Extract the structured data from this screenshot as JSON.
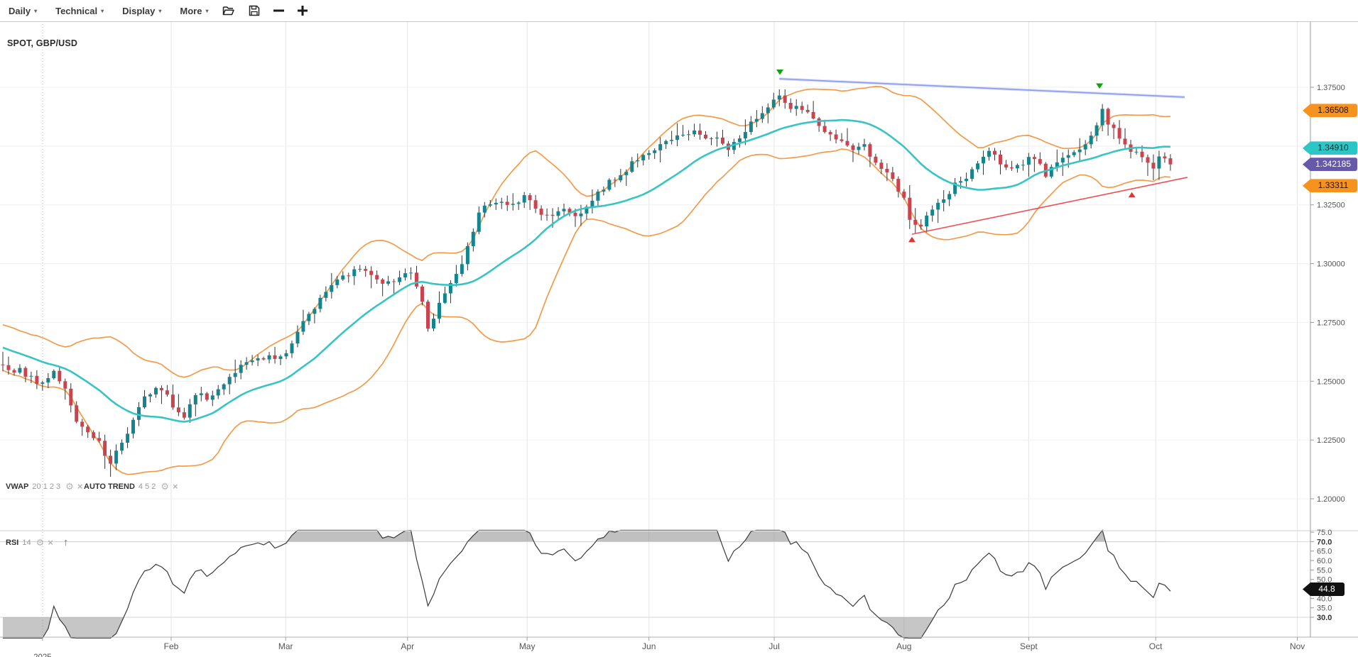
{
  "toolbar": {
    "menus": [
      {
        "name": "timeframe",
        "label": "Daily"
      },
      {
        "name": "technical",
        "label": "Technical"
      },
      {
        "name": "display",
        "label": "Display"
      },
      {
        "name": "more",
        "label": "More"
      }
    ],
    "buttons": [
      "open-layout",
      "save-layout",
      "zoom-out",
      "zoom-in"
    ]
  },
  "symbol": "SPOT, GBP/USD",
  "indicator_rows": {
    "vwap": {
      "name": "VWAP",
      "params": "20 1 2 3"
    },
    "autotrend": {
      "name": "AUTO TREND",
      "params": "4 5 2"
    },
    "rsi": {
      "name": "RSI",
      "params": "14"
    }
  },
  "colors": {
    "up": "#15858d",
    "down": "#c9444e",
    "wick": "#333333",
    "band": "#f29b49",
    "vwap": "#38c4c4",
    "trend_blue": "#7f93ee",
    "trend_blue_halo": "#b9c4f5",
    "trend_red": "#ee3b43",
    "rsi_line": "#3a3a3a",
    "grid": "#e4e4e4",
    "marker_green": "#0da30d",
    "marker_red": "#e23232"
  },
  "price_badges": [
    {
      "name": "badge-upper-band",
      "text": "1.36508",
      "bg": "#f6921e",
      "fg": "#1f1200",
      "price": 1.36508
    },
    {
      "name": "badge-vwap-mid",
      "text": "1.34910",
      "bg": "#2cc6c6",
      "fg": "#06302f",
      "price": 1.3491
    },
    {
      "name": "badge-last-price",
      "text": "1.342185",
      "bg": "#6659a9",
      "fg": "#ffffff",
      "price": 1.342185
    },
    {
      "name": "badge-lower-band",
      "text": "1.33311",
      "bg": "#f6921e",
      "fg": "#1f1200",
      "price": 1.33311
    }
  ],
  "rsi_badge": {
    "name": "badge-rsi-value",
    "text": "44.8",
    "bg": "#111111",
    "fg": "#ffffff",
    "value": 44.8
  },
  "chart_data": {
    "type": "candlestick",
    "symbol": "SPOT, GBP/USD",
    "timeframe": "Daily",
    "last_price": 1.342185,
    "n_candles": 207,
    "price_axis": {
      "ticks": [
        {
          "label": "1.37500",
          "value": 1.375
        },
        {
          "label": "1.35000",
          "value": 1.35
        },
        {
          "label": "1.32500",
          "value": 1.325
        },
        {
          "label": "1.30000",
          "value": 1.3
        },
        {
          "label": "1.27500",
          "value": 1.275
        },
        {
          "label": "1.25000",
          "value": 1.25
        },
        {
          "label": "1.22500",
          "value": 1.225
        },
        {
          "label": "1.20000",
          "value": 1.2
        }
      ]
    },
    "x_axis": {
      "year_tick": {
        "label": "2025",
        "day": 7
      },
      "months": [
        {
          "label": "Feb",
          "day": 29.7
        },
        {
          "label": "Mar",
          "day": 49.9
        },
        {
          "label": "Apr",
          "day": 71.4
        },
        {
          "label": "May",
          "day": 92.5
        },
        {
          "label": "Jun",
          "day": 114.0
        },
        {
          "label": "Jul",
          "day": 136.1
        },
        {
          "label": "Aug",
          "day": 159.0
        },
        {
          "label": "Sept",
          "day": 181.0
        },
        {
          "label": "Oct",
          "day": 203.4
        },
        {
          "label": "Nov",
          "day": 228.4
        }
      ]
    },
    "close_anchors": [
      [
        0,
        1.256
      ],
      [
        3,
        1.2545
      ],
      [
        6,
        1.25
      ],
      [
        9,
        1.253
      ],
      [
        11,
        1.2455
      ],
      [
        13,
        1.2335
      ],
      [
        15,
        1.2285
      ],
      [
        17,
        1.2245
      ],
      [
        19,
        1.215
      ],
      [
        21,
        1.2245
      ],
      [
        23,
        1.233
      ],
      [
        25,
        1.245
      ],
      [
        28,
        1.2465
      ],
      [
        30,
        1.239
      ],
      [
        32,
        1.2345
      ],
      [
        34,
        1.244
      ],
      [
        36,
        1.243
      ],
      [
        38,
        1.2465
      ],
      [
        41,
        1.254
      ],
      [
        43,
        1.258
      ],
      [
        46,
        1.2595
      ],
      [
        48,
        1.261
      ],
      [
        50,
        1.263
      ],
      [
        53,
        1.274
      ],
      [
        56,
        1.285
      ],
      [
        59,
        1.293
      ],
      [
        62,
        1.297
      ],
      [
        64,
        1.2985
      ],
      [
        66,
        1.292
      ],
      [
        68,
        1.2915
      ],
      [
        70,
        1.2945
      ],
      [
        72,
        1.295
      ],
      [
        73,
        1.291
      ],
      [
        74,
        1.283
      ],
      [
        75,
        1.272
      ],
      [
        77,
        1.283
      ],
      [
        80,
        1.295
      ],
      [
        82,
        1.306
      ],
      [
        84,
        1.322
      ],
      [
        86,
        1.326
      ],
      [
        88,
        1.327
      ],
      [
        90,
        1.324
      ],
      [
        92,
        1.329
      ],
      [
        95,
        1.322
      ],
      [
        97,
        1.321
      ],
      [
        99,
        1.3245
      ],
      [
        101,
        1.3205
      ],
      [
        104,
        1.327
      ],
      [
        107,
        1.335
      ],
      [
        110,
        1.34
      ],
      [
        113,
        1.346
      ],
      [
        116,
        1.3495
      ],
      [
        119,
        1.353
      ],
      [
        122,
        1.357
      ],
      [
        124,
        1.3535
      ],
      [
        126,
        1.355
      ],
      [
        128,
        1.348
      ],
      [
        131,
        1.357
      ],
      [
        134,
        1.364
      ],
      [
        137,
        1.371
      ],
      [
        139,
        1.365
      ],
      [
        141,
        1.366
      ],
      [
        143,
        1.362
      ],
      [
        145,
        1.357
      ],
      [
        148,
        1.351
      ],
      [
        150,
        1.348
      ],
      [
        152,
        1.3495
      ],
      [
        154,
        1.342
      ],
      [
        157,
        1.335
      ],
      [
        159,
        1.329
      ],
      [
        160,
        1.32
      ],
      [
        162,
        1.316
      ],
      [
        165,
        1.326
      ],
      [
        168,
        1.333
      ],
      [
        171,
        1.34
      ],
      [
        174,
        1.348
      ],
      [
        177,
        1.34
      ],
      [
        179,
        1.342
      ],
      [
        182,
        1.346
      ],
      [
        184,
        1.3385
      ],
      [
        186,
        1.342
      ],
      [
        188,
        1.346
      ],
      [
        191,
        1.35
      ],
      [
        193,
        1.358
      ],
      [
        194,
        1.3655
      ],
      [
        195,
        1.36
      ],
      [
        197,
        1.353
      ],
      [
        199,
        1.348
      ],
      [
        201,
        1.3465
      ],
      [
        203,
        1.341
      ],
      [
        204,
        1.3448
      ],
      [
        205,
        1.3438
      ],
      [
        206,
        1.342185
      ]
    ],
    "indicators": {
      "vwap": {
        "window": 20,
        "band_mult": 2,
        "mid_value": 1.3491,
        "upper_value": 1.36508,
        "lower_value": 1.33311
      },
      "auto_trend": {
        "lines": [
          {
            "name": "resistance",
            "halo": true,
            "day1": 137,
            "price1": 1.3786,
            "day2": 208.5,
            "price2": 1.3708
          },
          {
            "name": "support",
            "halo": false,
            "day1": 160.4,
            "price1": 1.3125,
            "day2": 209,
            "price2": 1.3367
          }
        ],
        "markers": [
          {
            "shape": "triangle-down",
            "day": 137.1,
            "price": 1.3815
          },
          {
            "shape": "triangle-down",
            "day": 193.5,
            "price": 1.3756
          },
          {
            "shape": "triangle-up",
            "day": 160.4,
            "price": 1.3102
          },
          {
            "shape": "triangle-up",
            "day": 199.2,
            "price": 1.3292
          }
        ]
      },
      "rsi": {
        "period": 14,
        "current": 44.8,
        "overbought": 70,
        "oversold": 30,
        "axis_ticks": [
          {
            "label": "75.0",
            "value": 75,
            "bold": false
          },
          {
            "label": "70.0",
            "value": 70,
            "bold": true
          },
          {
            "label": "65.0",
            "value": 65,
            "bold": false
          },
          {
            "label": "60.0",
            "value": 60,
            "bold": false
          },
          {
            "label": "55.0",
            "value": 55,
            "bold": false
          },
          {
            "label": "50.0",
            "value": 50,
            "bold": false
          },
          {
            "label": "40.0",
            "value": 40,
            "bold": false
          },
          {
            "label": "35.0",
            "value": 35,
            "bold": false
          },
          {
            "label": "30.0",
            "value": 30,
            "bold": true
          }
        ]
      }
    }
  }
}
